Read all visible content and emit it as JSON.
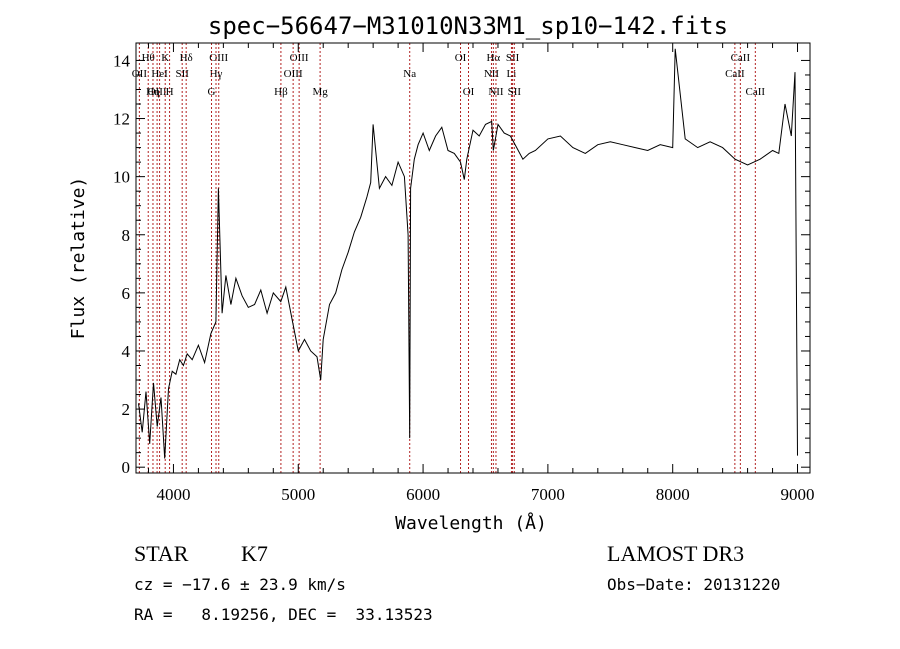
{
  "chart_data": {
    "type": "line",
    "title": "spec−56647−M31010N33M1_sp10−142.fits",
    "xlabel": "Wavelength (Å)",
    "ylabel": "Flux (relative)",
    "xlim": [
      3700,
      9100
    ],
    "ylim": [
      -0.2,
      14.6
    ],
    "xticks": [
      4000,
      5000,
      6000,
      7000,
      8000,
      9000
    ],
    "yticks": [
      0,
      2,
      4,
      6,
      8,
      10,
      12,
      14
    ],
    "series": [
      {
        "name": "flux",
        "x": [
          3720,
          3750,
          3780,
          3810,
          3840,
          3870,
          3900,
          3930,
          3960,
          3990,
          4020,
          4050,
          4080,
          4110,
          4150,
          4200,
          4250,
          4300,
          4340,
          4360,
          4390,
          4420,
          4460,
          4500,
          4550,
          4600,
          4650,
          4700,
          4750,
          4800,
          4860,
          4900,
          4950,
          5000,
          5050,
          5100,
          5150,
          5180,
          5200,
          5250,
          5300,
          5350,
          5400,
          5450,
          5500,
          5550,
          5580,
          5600,
          5650,
          5700,
          5750,
          5800,
          5850,
          5880,
          5893,
          5900,
          5930,
          5960,
          6000,
          6050,
          6100,
          6150,
          6200,
          6250,
          6300,
          6330,
          6350,
          6400,
          6450,
          6500,
          6550,
          6563,
          6600,
          6650,
          6700,
          6750,
          6800,
          6850,
          6900,
          7000,
          7100,
          7200,
          7300,
          7400,
          7500,
          7600,
          7700,
          7800,
          7900,
          8000,
          8020,
          8100,
          8200,
          8300,
          8400,
          8500,
          8600,
          8700,
          8800,
          8850,
          8900,
          8950,
          8980,
          9000
        ],
        "y": [
          2.2,
          1.2,
          2.6,
          0.8,
          2.9,
          1.4,
          2.4,
          0.3,
          2.7,
          3.3,
          3.2,
          3.7,
          3.5,
          3.9,
          3.7,
          4.2,
          3.6,
          4.6,
          5.0,
          9.6,
          5.3,
          6.6,
          5.6,
          6.5,
          5.9,
          5.5,
          5.6,
          6.1,
          5.3,
          6.0,
          5.7,
          6.2,
          5.1,
          4.0,
          4.4,
          4.0,
          3.8,
          3.0,
          4.4,
          5.6,
          6.0,
          6.8,
          7.4,
          8.1,
          8.6,
          9.3,
          9.8,
          11.8,
          9.6,
          10.0,
          9.7,
          10.5,
          10.0,
          8.0,
          1.0,
          9.6,
          10.6,
          11.1,
          11.5,
          10.9,
          11.4,
          11.7,
          10.9,
          10.8,
          10.5,
          9.9,
          10.6,
          11.6,
          11.4,
          11.8,
          11.9,
          10.9,
          11.8,
          11.5,
          11.4,
          11.0,
          10.6,
          10.8,
          10.9,
          11.3,
          11.4,
          11.0,
          10.8,
          11.1,
          11.2,
          11.1,
          11.0,
          10.9,
          11.1,
          11.0,
          14.4,
          11.3,
          11.0,
          11.2,
          11.0,
          10.6,
          10.4,
          10.6,
          10.9,
          10.8,
          12.5,
          11.4,
          13.6,
          0.4
        ]
      }
    ],
    "line_markers": [
      {
        "label": "Hθ",
        "x": 3798,
        "row": 0
      },
      {
        "label": "OII",
        "x": 3727,
        "row": 1
      },
      {
        "label": "OIII",
        "x": 3869,
        "row": 2
      },
      {
        "label": "Hη",
        "x": 3836,
        "row": 2
      },
      {
        "label": "K",
        "x": 3934,
        "row": 0
      },
      {
        "label": "HeI",
        "x": 3889,
        "row": 1
      },
      {
        "label": "H",
        "x": 3969,
        "row": 2
      },
      {
        "label": "SII",
        "x": 4070,
        "row": 1
      },
      {
        "label": "Hδ",
        "x": 4102,
        "row": 0
      },
      {
        "label": "OIII",
        "x": 4363,
        "row": 0
      },
      {
        "label": "Hγ",
        "x": 4341,
        "row": 1
      },
      {
        "label": "G",
        "x": 4305,
        "row": 2
      },
      {
        "label": "OIII",
        "x": 5007,
        "row": 0
      },
      {
        "label": "OIII",
        "x": 4959,
        "row": 1
      },
      {
        "label": "Hβ",
        "x": 4861,
        "row": 2
      },
      {
        "label": "Mg",
        "x": 5175,
        "row": 2
      },
      {
        "label": "Na",
        "x": 5893,
        "row": 1
      },
      {
        "label": "OI",
        "x": 6300,
        "row": 0
      },
      {
        "label": "OI",
        "x": 6364,
        "row": 2
      },
      {
        "label": "Hα",
        "x": 6563,
        "row": 0
      },
      {
        "label": "SII",
        "x": 6717,
        "row": 0
      },
      {
        "label": "NII",
        "x": 6548,
        "row": 1
      },
      {
        "label": "Li",
        "x": 6708,
        "row": 1
      },
      {
        "label": "NII",
        "x": 6584,
        "row": 2
      },
      {
        "label": "SII",
        "x": 6731,
        "row": 2
      },
      {
        "label": "CaII",
        "x": 8542,
        "row": 0
      },
      {
        "label": "CaII",
        "x": 8498,
        "row": 1
      },
      {
        "label": "CaII",
        "x": 8662,
        "row": 2
      }
    ]
  },
  "info": {
    "object_class": "STAR",
    "subclass": "K7",
    "survey": "LAMOST DR3",
    "redshift": "cz = −17.6 ± 23.9 km/s",
    "obs_date": "Obs−Date: 20131220",
    "coords": "RA =   8.19256, DEC =  33.13523"
  },
  "colors": {
    "line_marker": "#b22222",
    "axis": "#000000",
    "background": "#ffffff"
  }
}
